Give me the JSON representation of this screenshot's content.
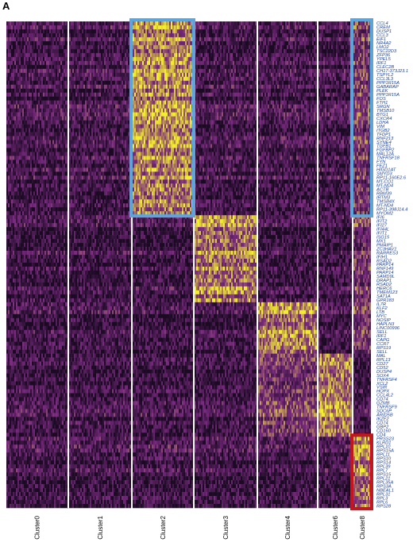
{
  "panel_label": "A",
  "colors": {
    "low": "#1a0a22",
    "mid": "#7a2a80",
    "high": "#f2ee2a",
    "highlight_blue": "#5aa6dc",
    "highlight_red": "#c8141e",
    "gene_label": "#1a3fae"
  },
  "chart_data": {
    "type": "heatmap",
    "title": "",
    "xlabel": "",
    "ylabel": "",
    "clusters": [
      "Cluster0",
      "Cluster1",
      "Cluster2",
      "Cluster3",
      "Cluster4",
      "Cluster6",
      "Cluster8"
    ],
    "genes": [
      "CCL4",
      "CREM",
      "DUSP1",
      "CCL3",
      "EIF1",
      "NR4A2",
      "LMO2",
      "TSC22D3",
      "ZFP36",
      "YPEL5",
      "IRF1",
      "CLEC2B",
      "CH17-373J23.1",
      "TSPYL2",
      "CCL3L3",
      "PPP1R15A",
      "GABARAP",
      "PLEK",
      "PPP1R15A",
      "FOS",
      "FTH1",
      "SRGN",
      "TMSB10",
      "BTG1",
      "CXCR4",
      "LDHA",
      "VIM",
      "ITGB2",
      "TFDP1",
      "RNF213",
      "SYNE4",
      "TGFB1",
      "FGFBP2",
      "MAL12A",
      "TNFRSF18",
      "FYN",
      "FEZ1",
      "HIGD1AT",
      "SMYD3",
      "RP11-160E2.6",
      "MT-CO1",
      "MT-ND4",
      "ACTB",
      "RBM39",
      "IRTM3",
      "TMSB4X",
      "MT-ND4",
      "RP11-398J14.4",
      "MYOM2",
      "IFI6",
      "IFIT2",
      "IFI27",
      "IFI44L",
      "IFIT1",
      "ISG15",
      "MX1",
      "PMAIP1",
      "ZC3HAV1",
      "RARRES3",
      "IFIH1",
      "RSAD2",
      "PARP14",
      "RNF149",
      "PARP14",
      "SAMD9L",
      "DRAP1",
      "RSAD2",
      "HERC6",
      "TMEM123",
      "SAT1A",
      "GPR183",
      "IL7R",
      "KLF2",
      "LTB",
      "MYC",
      "NOSIP",
      "HAPLN3",
      "LINC00996",
      "SELL",
      "IRF1",
      "CAPG",
      "CCR7",
      "RPS19",
      "SELL",
      "MAL",
      "RPL13",
      "CD27",
      "CD52",
      "DUSP4",
      "SOX4",
      "TNFRSF4",
      "XCL2",
      "VSIR",
      "HOPX",
      "CCL4L2",
      "CD74",
      "GZMB",
      "TNFRSF9",
      "SDC6P",
      "ARID5B",
      "IKZF2",
      "CD74",
      "GBP2",
      "CD160",
      "CD4",
      "PRSS23",
      "KLRD1",
      "RPL10",
      "RPS15A",
      "RPL11",
      "RPS10",
      "RPS14",
      "RPL39",
      "RPL7",
      "RPS15",
      "RPL21",
      "RPL35A",
      "RPS3A",
      "NBEAL1",
      "RPL31",
      "RPL3",
      "RPL6",
      "RPS28"
    ],
    "blocks": [
      {
        "genes": [
          0,
          48
        ],
        "high_cluster": "Cluster2",
        "secondary_cluster": "Cluster8"
      },
      {
        "genes": [
          49,
          70
        ],
        "high_cluster": "Cluster3",
        "secondary_cluster": "Cluster8"
      },
      {
        "genes": [
          71,
          83
        ],
        "high_cluster": "Cluster4",
        "secondary_cluster": "Cluster8"
      },
      {
        "genes": [
          84,
          104
        ],
        "high_cluster": "Cluster6",
        "secondary_cluster": "Cluster4"
      },
      {
        "genes": [
          105,
          122
        ],
        "high_cluster": "Cluster8",
        "secondary_cluster": null
      }
    ],
    "highlights": [
      {
        "cluster": "Cluster2",
        "genes": [
          0,
          48
        ],
        "color": "blue"
      },
      {
        "cluster": "Cluster8",
        "genes": [
          0,
          48
        ],
        "color": "blue"
      },
      {
        "cluster": "Cluster8",
        "genes": [
          105,
          122
        ],
        "color": "red"
      }
    ],
    "legend": "none",
    "grid": false
  }
}
